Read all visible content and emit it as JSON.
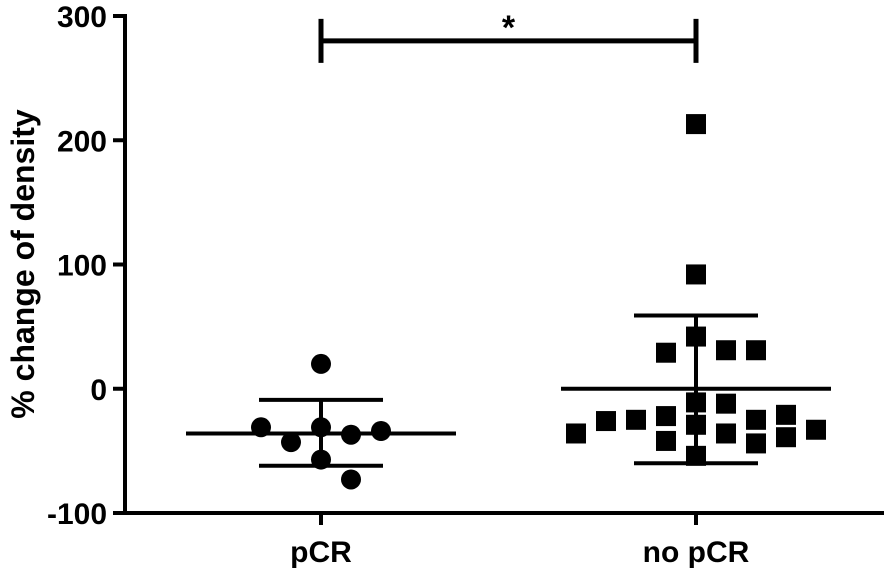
{
  "chart_data": {
    "type": "scatter",
    "ylabel": "% change of density",
    "ylim": [
      -100,
      300
    ],
    "yticks": [
      -100,
      0,
      100,
      200,
      300
    ],
    "categories": [
      "pCR",
      "no pCR"
    ],
    "series": [
      {
        "category": "pCR",
        "marker": "circle",
        "values": [
          20,
          -31,
          -37,
          -43,
          -34,
          -31,
          -57,
          -73
        ],
        "mean": -36,
        "sd_low": -62,
        "sd_high": -9
      },
      {
        "category": "no pCR",
        "marker": "square",
        "values": [
          213,
          92,
          42,
          31,
          29,
          31,
          -11,
          -12,
          -22,
          -25,
          -29,
          -25,
          -21,
          -26,
          -36,
          -42,
          -44,
          -33,
          -39,
          -36,
          -54
        ],
        "mean": 0,
        "sd_low": -60,
        "sd_high": 59
      }
    ],
    "significance": {
      "label": "*",
      "between": [
        "pCR",
        "no pCR"
      ],
      "y": 280
    },
    "colors": {
      "marks": "#000000",
      "background": "#ffffff"
    }
  }
}
